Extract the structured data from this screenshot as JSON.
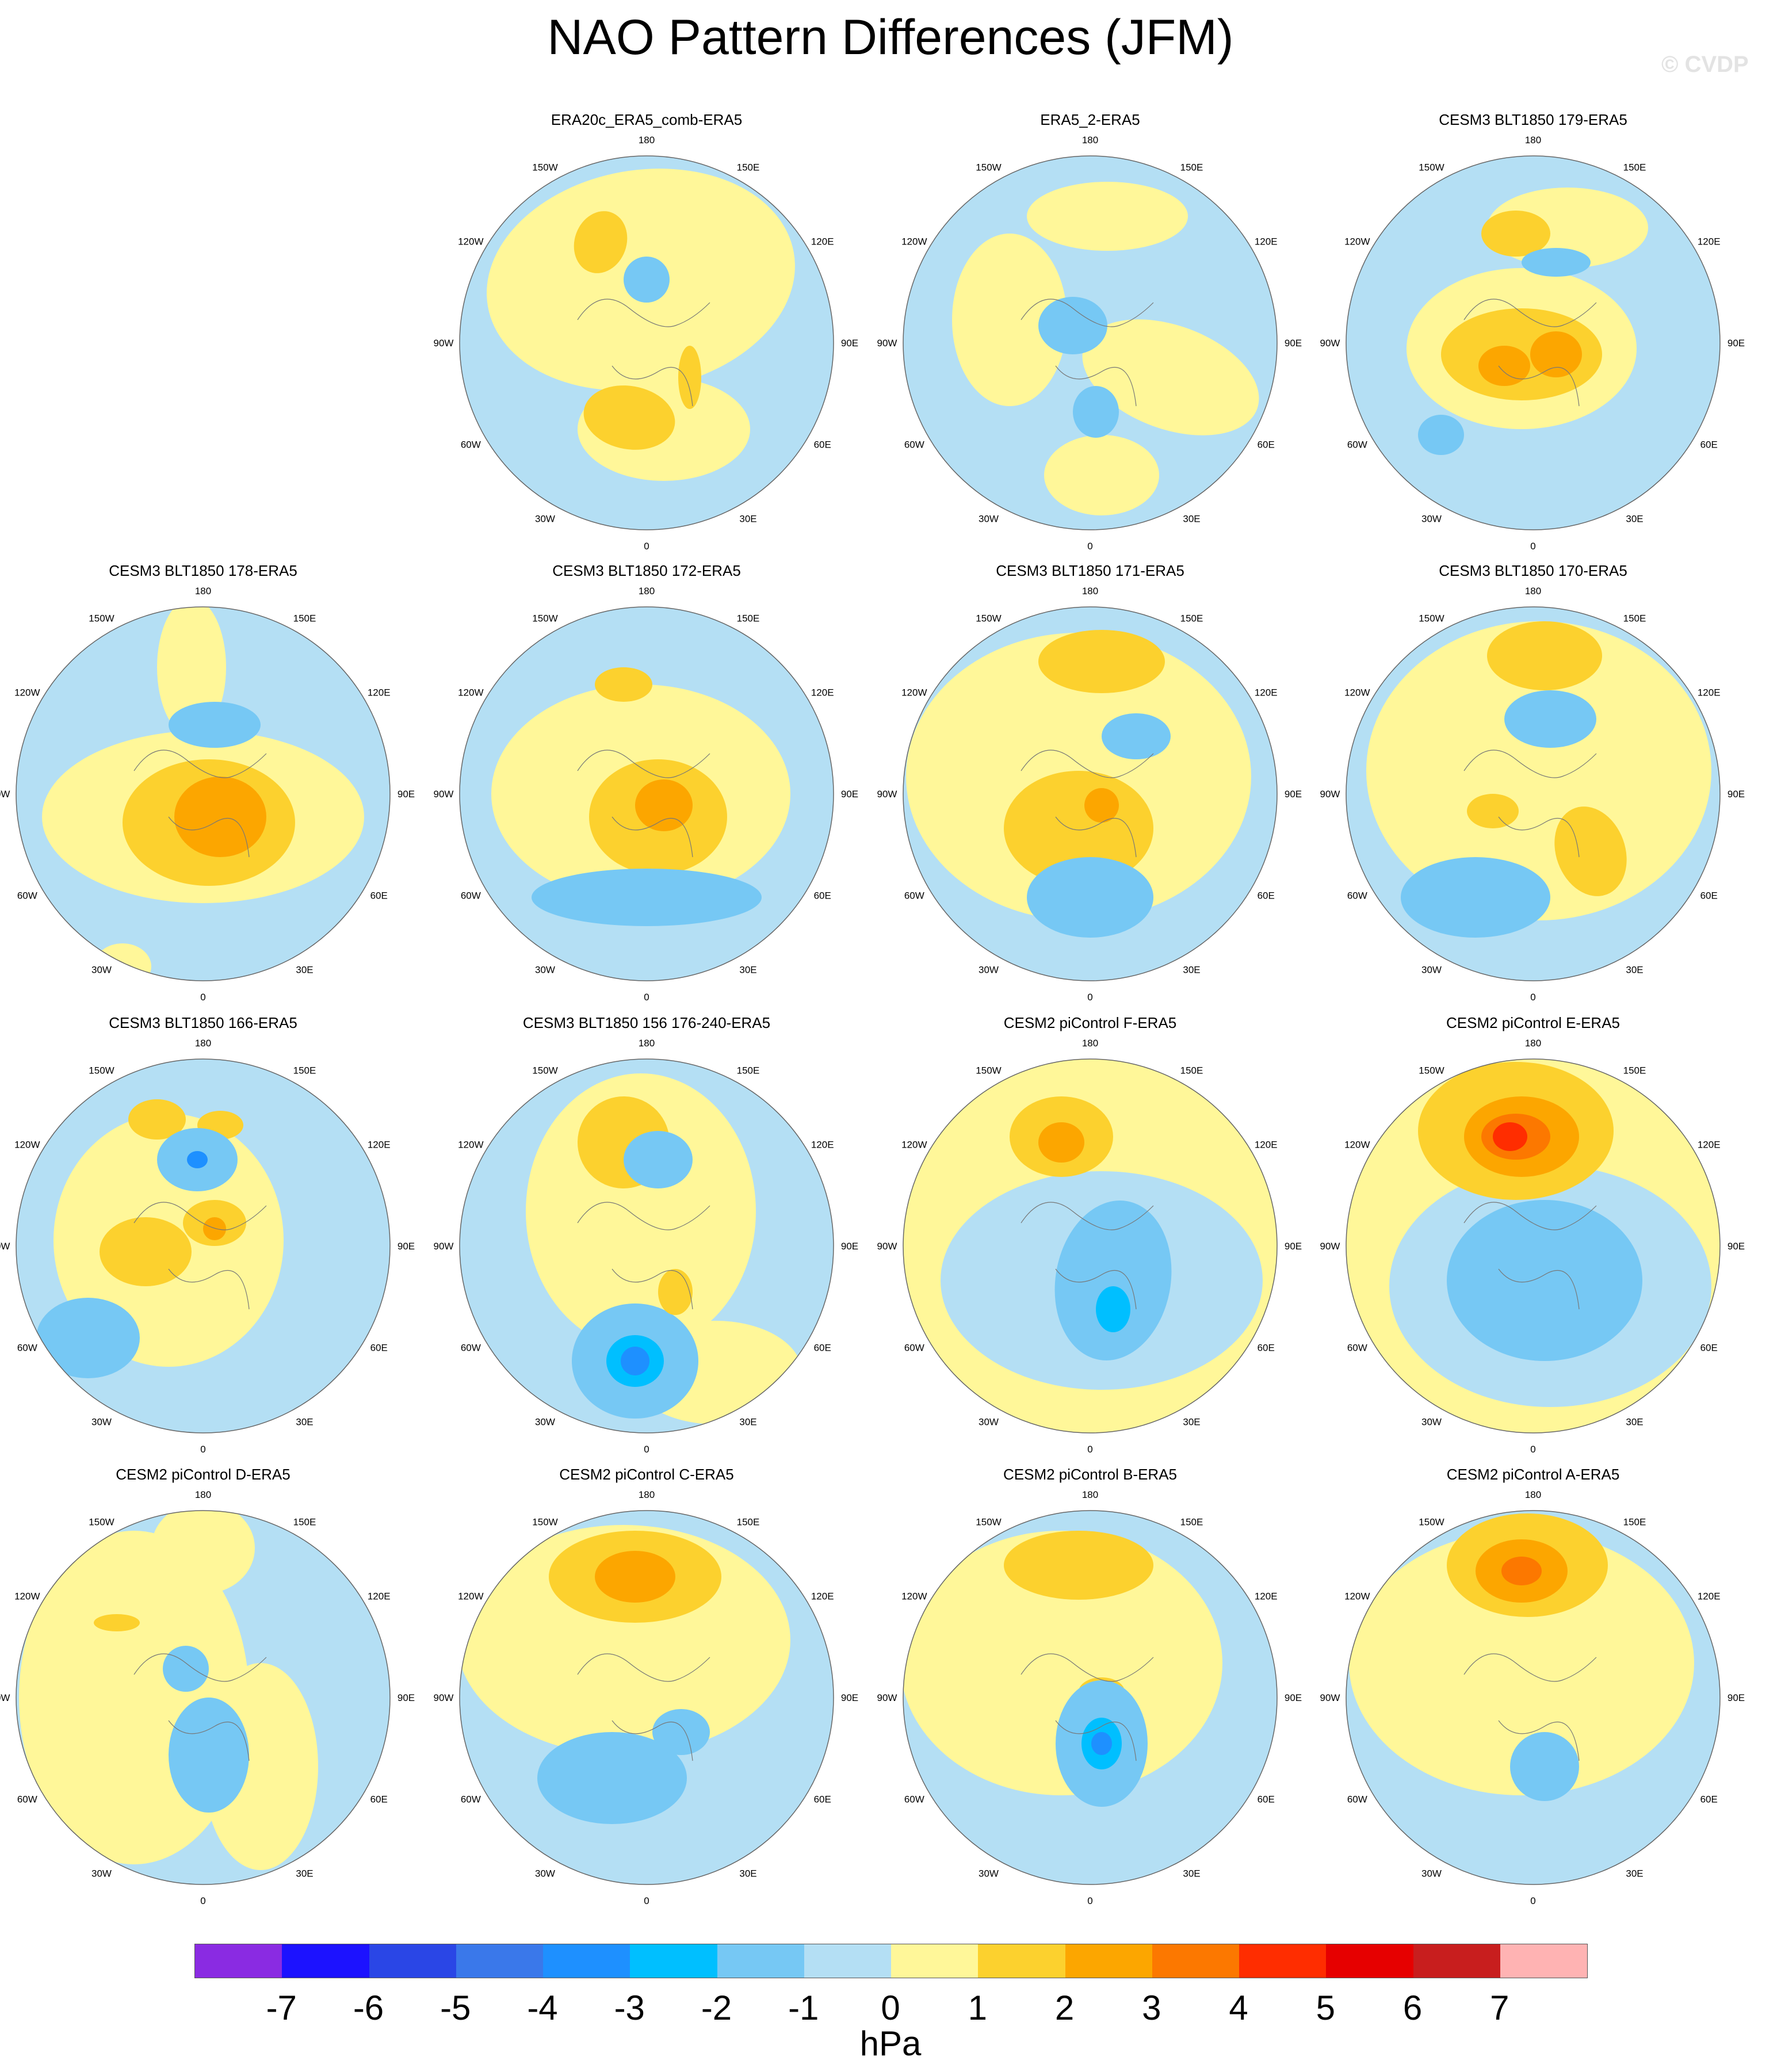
{
  "title": "NAO Pattern Differences (JFM)",
  "watermark": "© CVDP",
  "longitude_labels": [
    "180",
    "150E",
    "120E",
    "90E",
    "60E",
    "30E",
    "0",
    "30W",
    "60W",
    "90W",
    "120W",
    "150W"
  ],
  "panels": [
    {
      "title": "ERA20c_ERA5_comb-ERA5",
      "pos": 1,
      "pattern": "p1"
    },
    {
      "title": "ERA5_2-ERA5",
      "pos": 2,
      "pattern": "p2"
    },
    {
      "title": "CESM3 BLT1850 179-ERA5",
      "pos": 3,
      "pattern": "p3"
    },
    {
      "title": "CESM3 BLT1850 178-ERA5",
      "pos": 4,
      "pattern": "p4"
    },
    {
      "title": "CESM3 BLT1850 172-ERA5",
      "pos": 5,
      "pattern": "p5"
    },
    {
      "title": "CESM3 BLT1850 171-ERA5",
      "pos": 6,
      "pattern": "p6"
    },
    {
      "title": "CESM3 BLT1850 170-ERA5",
      "pos": 7,
      "pattern": "p7"
    },
    {
      "title": "CESM3 BLT1850 166-ERA5",
      "pos": 8,
      "pattern": "p8"
    },
    {
      "title": "CESM3 BLT1850 156 176-240-ERA5",
      "pos": 9,
      "pattern": "p9"
    },
    {
      "title": "CESM2 piControl F-ERA5",
      "pos": 10,
      "pattern": "p10"
    },
    {
      "title": "CESM2 piControl E-ERA5",
      "pos": 11,
      "pattern": "p11"
    },
    {
      "title": "CESM2 piControl D-ERA5",
      "pos": 12,
      "pattern": "p12"
    },
    {
      "title": "CESM2 piControl C-ERA5",
      "pos": 13,
      "pattern": "p13"
    },
    {
      "title": "CESM2 piControl B-ERA5",
      "pos": 14,
      "pattern": "p14"
    },
    {
      "title": "CESM2 piControl A-ERA5",
      "pos": 15,
      "pattern": "p15"
    }
  ],
  "colorbar": {
    "colors": [
      "#8a2be2",
      "#1c12ff",
      "#2a46e6",
      "#3a78ea",
      "#1e90ff",
      "#00bfff",
      "#76c8f4",
      "#b4dff4",
      "#fff799",
      "#fcd12e",
      "#fca600",
      "#fc7800",
      "#ff2d00",
      "#e60000",
      "#c81e1e",
      "#ffb3b3"
    ],
    "ticks": [
      "-7",
      "-6",
      "-5",
      "-4",
      "-3",
      "-2",
      "-1",
      "0",
      "1",
      "2",
      "3",
      "4",
      "5",
      "6",
      "7"
    ],
    "units": "hPa"
  }
}
